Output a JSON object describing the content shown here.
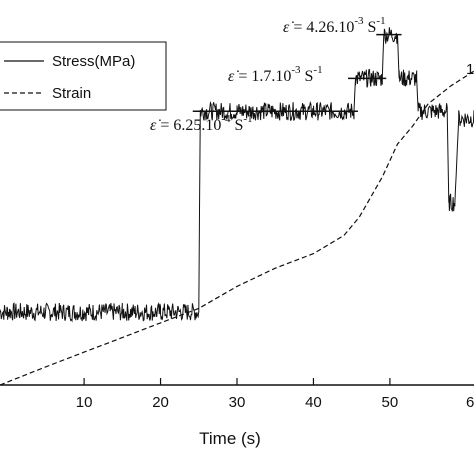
{
  "chart_data": {
    "type": "line",
    "xlabel": "Time (s)",
    "x_ticks": [
      10,
      20,
      30,
      40,
      50
    ],
    "x_tick_cut": "6",
    "xlim": [
      -1,
      61
    ],
    "legend": {
      "placement": "top-left",
      "entries": [
        "Stress(MPa)",
        "Strain"
      ]
    },
    "series": [
      {
        "name": "Stress(MPa)",
        "style": "solid",
        "points": [
          [
            -1,
            0.2
          ],
          [
            0,
            0.2
          ],
          [
            5,
            0.2
          ],
          [
            10,
            0.2
          ],
          [
            15,
            0.2
          ],
          [
            20,
            0.2
          ],
          [
            25,
            0.2
          ],
          [
            25.2,
            0.75
          ],
          [
            30,
            0.75
          ],
          [
            40,
            0.75
          ],
          [
            45.3,
            0.75
          ],
          [
            45.5,
            0.84
          ],
          [
            49.0,
            0.84
          ],
          [
            49.2,
            0.96
          ],
          [
            51.0,
            0.96
          ],
          [
            51.2,
            0.84
          ],
          [
            53.5,
            0.84
          ],
          [
            53.7,
            0.75
          ],
          [
            57.5,
            0.75
          ],
          [
            57.7,
            0.5
          ],
          [
            58.5,
            0.5
          ],
          [
            59.0,
            0.73
          ],
          [
            60.5,
            0.73
          ],
          [
            61,
            0.73
          ]
        ]
      },
      {
        "name": "Strain",
        "style": "dashed",
        "points": [
          [
            -1,
            0.0
          ],
          [
            5,
            0.05
          ],
          [
            10,
            0.09
          ],
          [
            15,
            0.13
          ],
          [
            20,
            0.17
          ],
          [
            25,
            0.21
          ],
          [
            30,
            0.27
          ],
          [
            35,
            0.32
          ],
          [
            40,
            0.36
          ],
          [
            44,
            0.41
          ],
          [
            46,
            0.46
          ],
          [
            49,
            0.57
          ],
          [
            51,
            0.66
          ],
          [
            53,
            0.71
          ],
          [
            55,
            0.77
          ],
          [
            58,
            0.82
          ],
          [
            61,
            0.86
          ]
        ]
      }
    ],
    "noise_amplitude": 0.025,
    "annotations": [
      {
        "base": "6.25.10",
        "exp": "-4",
        "unit": " S",
        "unit_exp": "-1",
        "level_x": [
          25,
          45.3
        ],
        "level_y": 0.75
      },
      {
        "base": "1.7.10",
        "exp": "-3",
        "unit": " S",
        "unit_exp": "-1",
        "level_x": [
          45.3,
          49
        ],
        "level_y": 0.84
      },
      {
        "base": "4.26.10",
        "exp": "-3",
        "unit": " S",
        "unit_exp": "-1",
        "level_x": [
          49,
          51
        ],
        "level_y": 0.96
      }
    ],
    "right_edge_glyph": "1"
  },
  "colors": {
    "line": "#111111",
    "axis": "#111111",
    "background": "#ffffff"
  }
}
